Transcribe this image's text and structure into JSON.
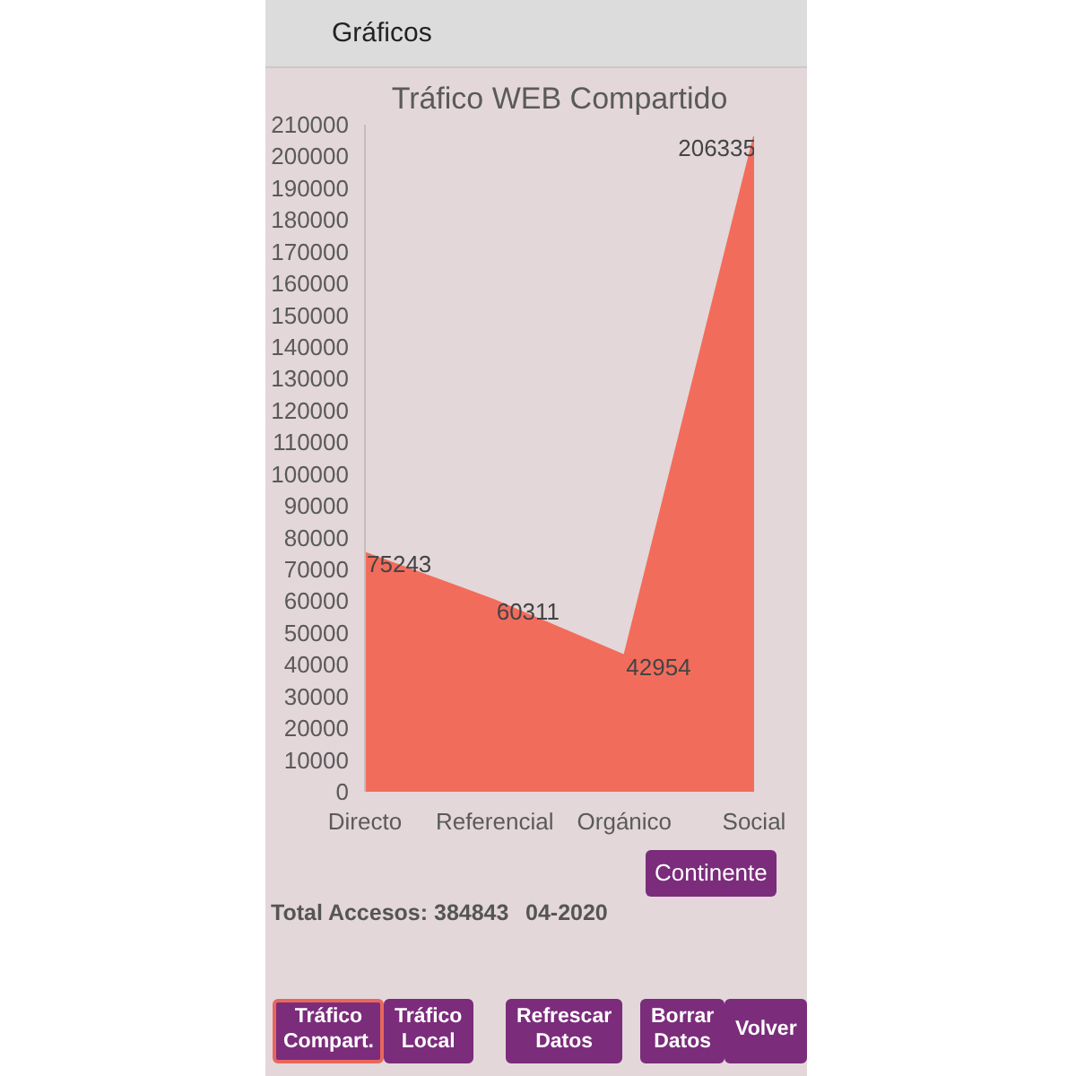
{
  "chart_data": {
    "type": "area",
    "title": "Tráfico WEB Compartido",
    "categories": [
      "Directo",
      "Referencial",
      "Orgánico",
      "Social"
    ],
    "values": [
      75243,
      60311,
      42954,
      206335
    ],
    "color": "#f26c5c",
    "ylim": [
      0,
      210000
    ],
    "yticks": [
      0,
      10000,
      20000,
      30000,
      40000,
      50000,
      60000,
      70000,
      80000,
      90000,
      100000,
      110000,
      120000,
      130000,
      140000,
      150000,
      160000,
      170000,
      180000,
      190000,
      200000,
      210000
    ],
    "grid": false,
    "data_labels": true,
    "annotations": [
      "Gráficos",
      "Continente",
      "Total Accesos: 384843",
      "04-2020",
      "Tráfico Compart.",
      "Tráfico Local",
      "Refrescar Datos",
      "Borrar Datos",
      "Volver"
    ]
  }
}
